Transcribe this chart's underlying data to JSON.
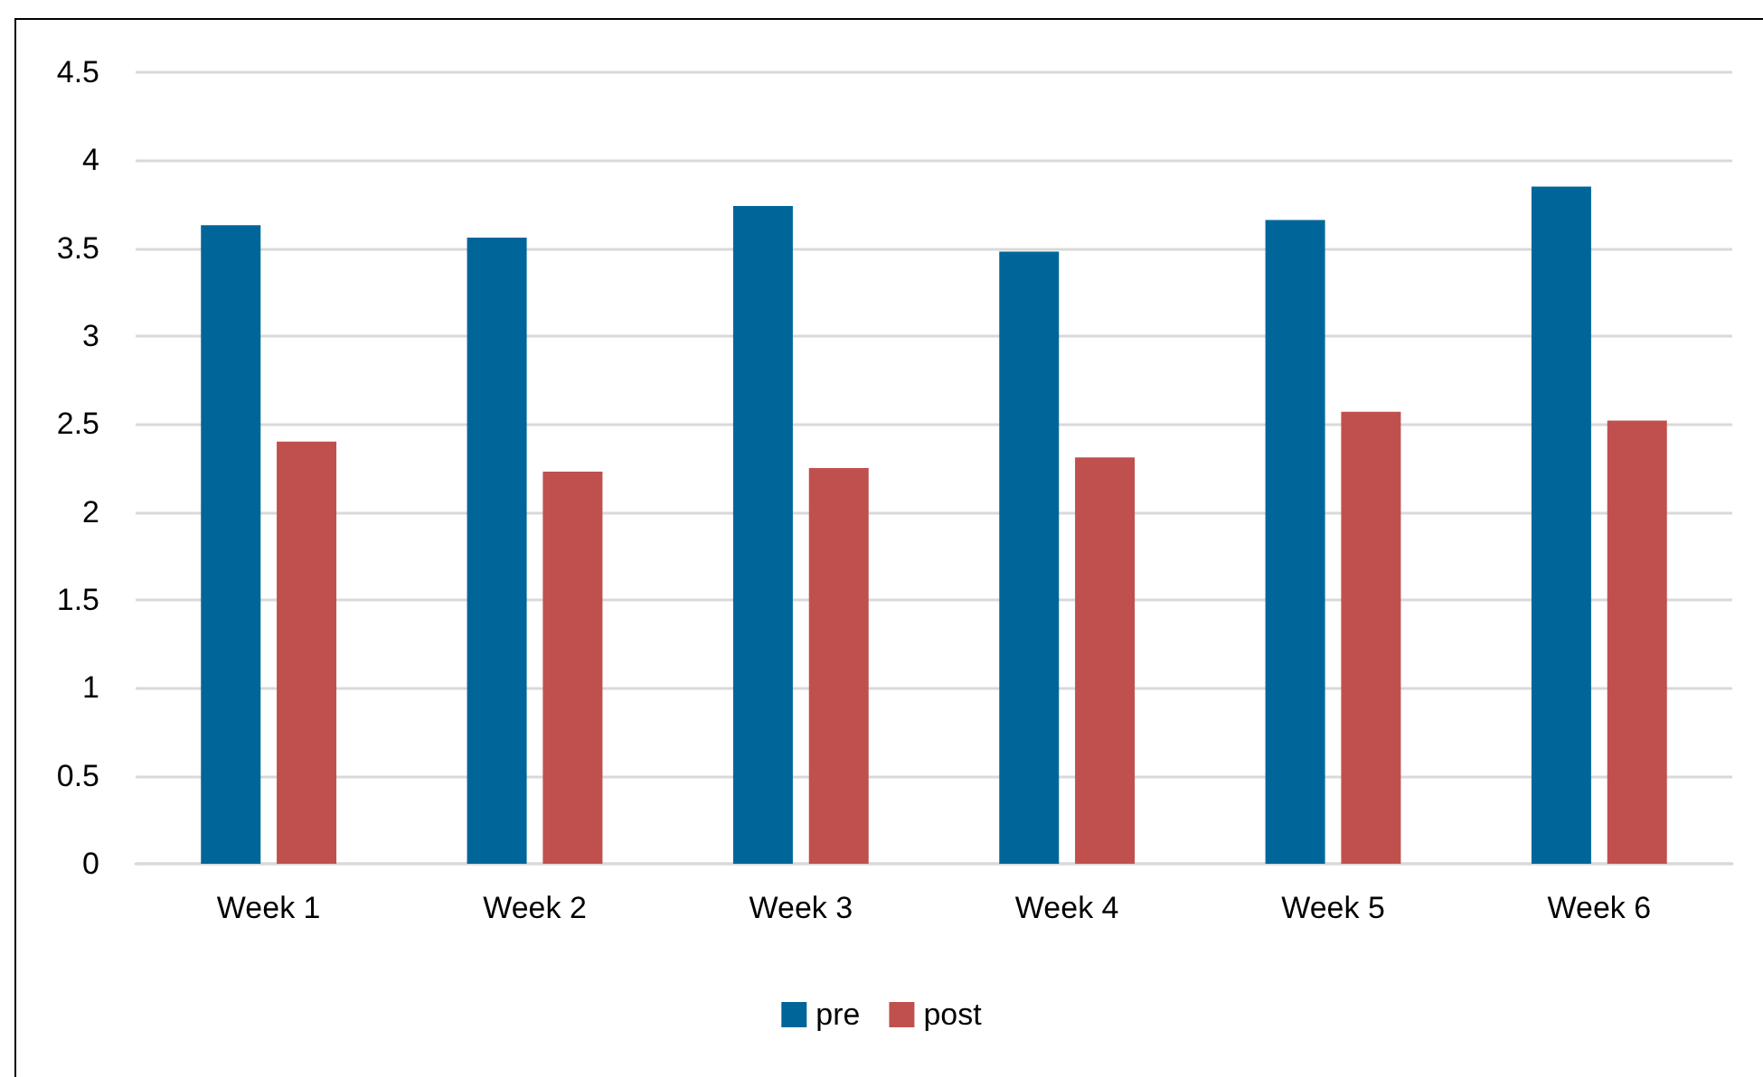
{
  "chart_data": {
    "type": "bar",
    "categories": [
      "Week 1",
      "Week 2",
      "Week 3",
      "Week 4",
      "Week 5",
      "Week 6"
    ],
    "series": [
      {
        "name": "pre",
        "color": "#006699",
        "values": [
          3.63,
          3.56,
          3.74,
          3.48,
          3.66,
          3.85
        ]
      },
      {
        "name": "post",
        "color": "#c0504d",
        "values": [
          2.4,
          2.23,
          2.25,
          2.31,
          2.57,
          2.52
        ]
      }
    ],
    "ylim": [
      0,
      4.5
    ],
    "yticks": [
      0,
      0.5,
      1,
      1.5,
      2,
      2.5,
      3,
      3.5,
      4,
      4.5
    ],
    "grid": "y",
    "legend": "bottom"
  }
}
